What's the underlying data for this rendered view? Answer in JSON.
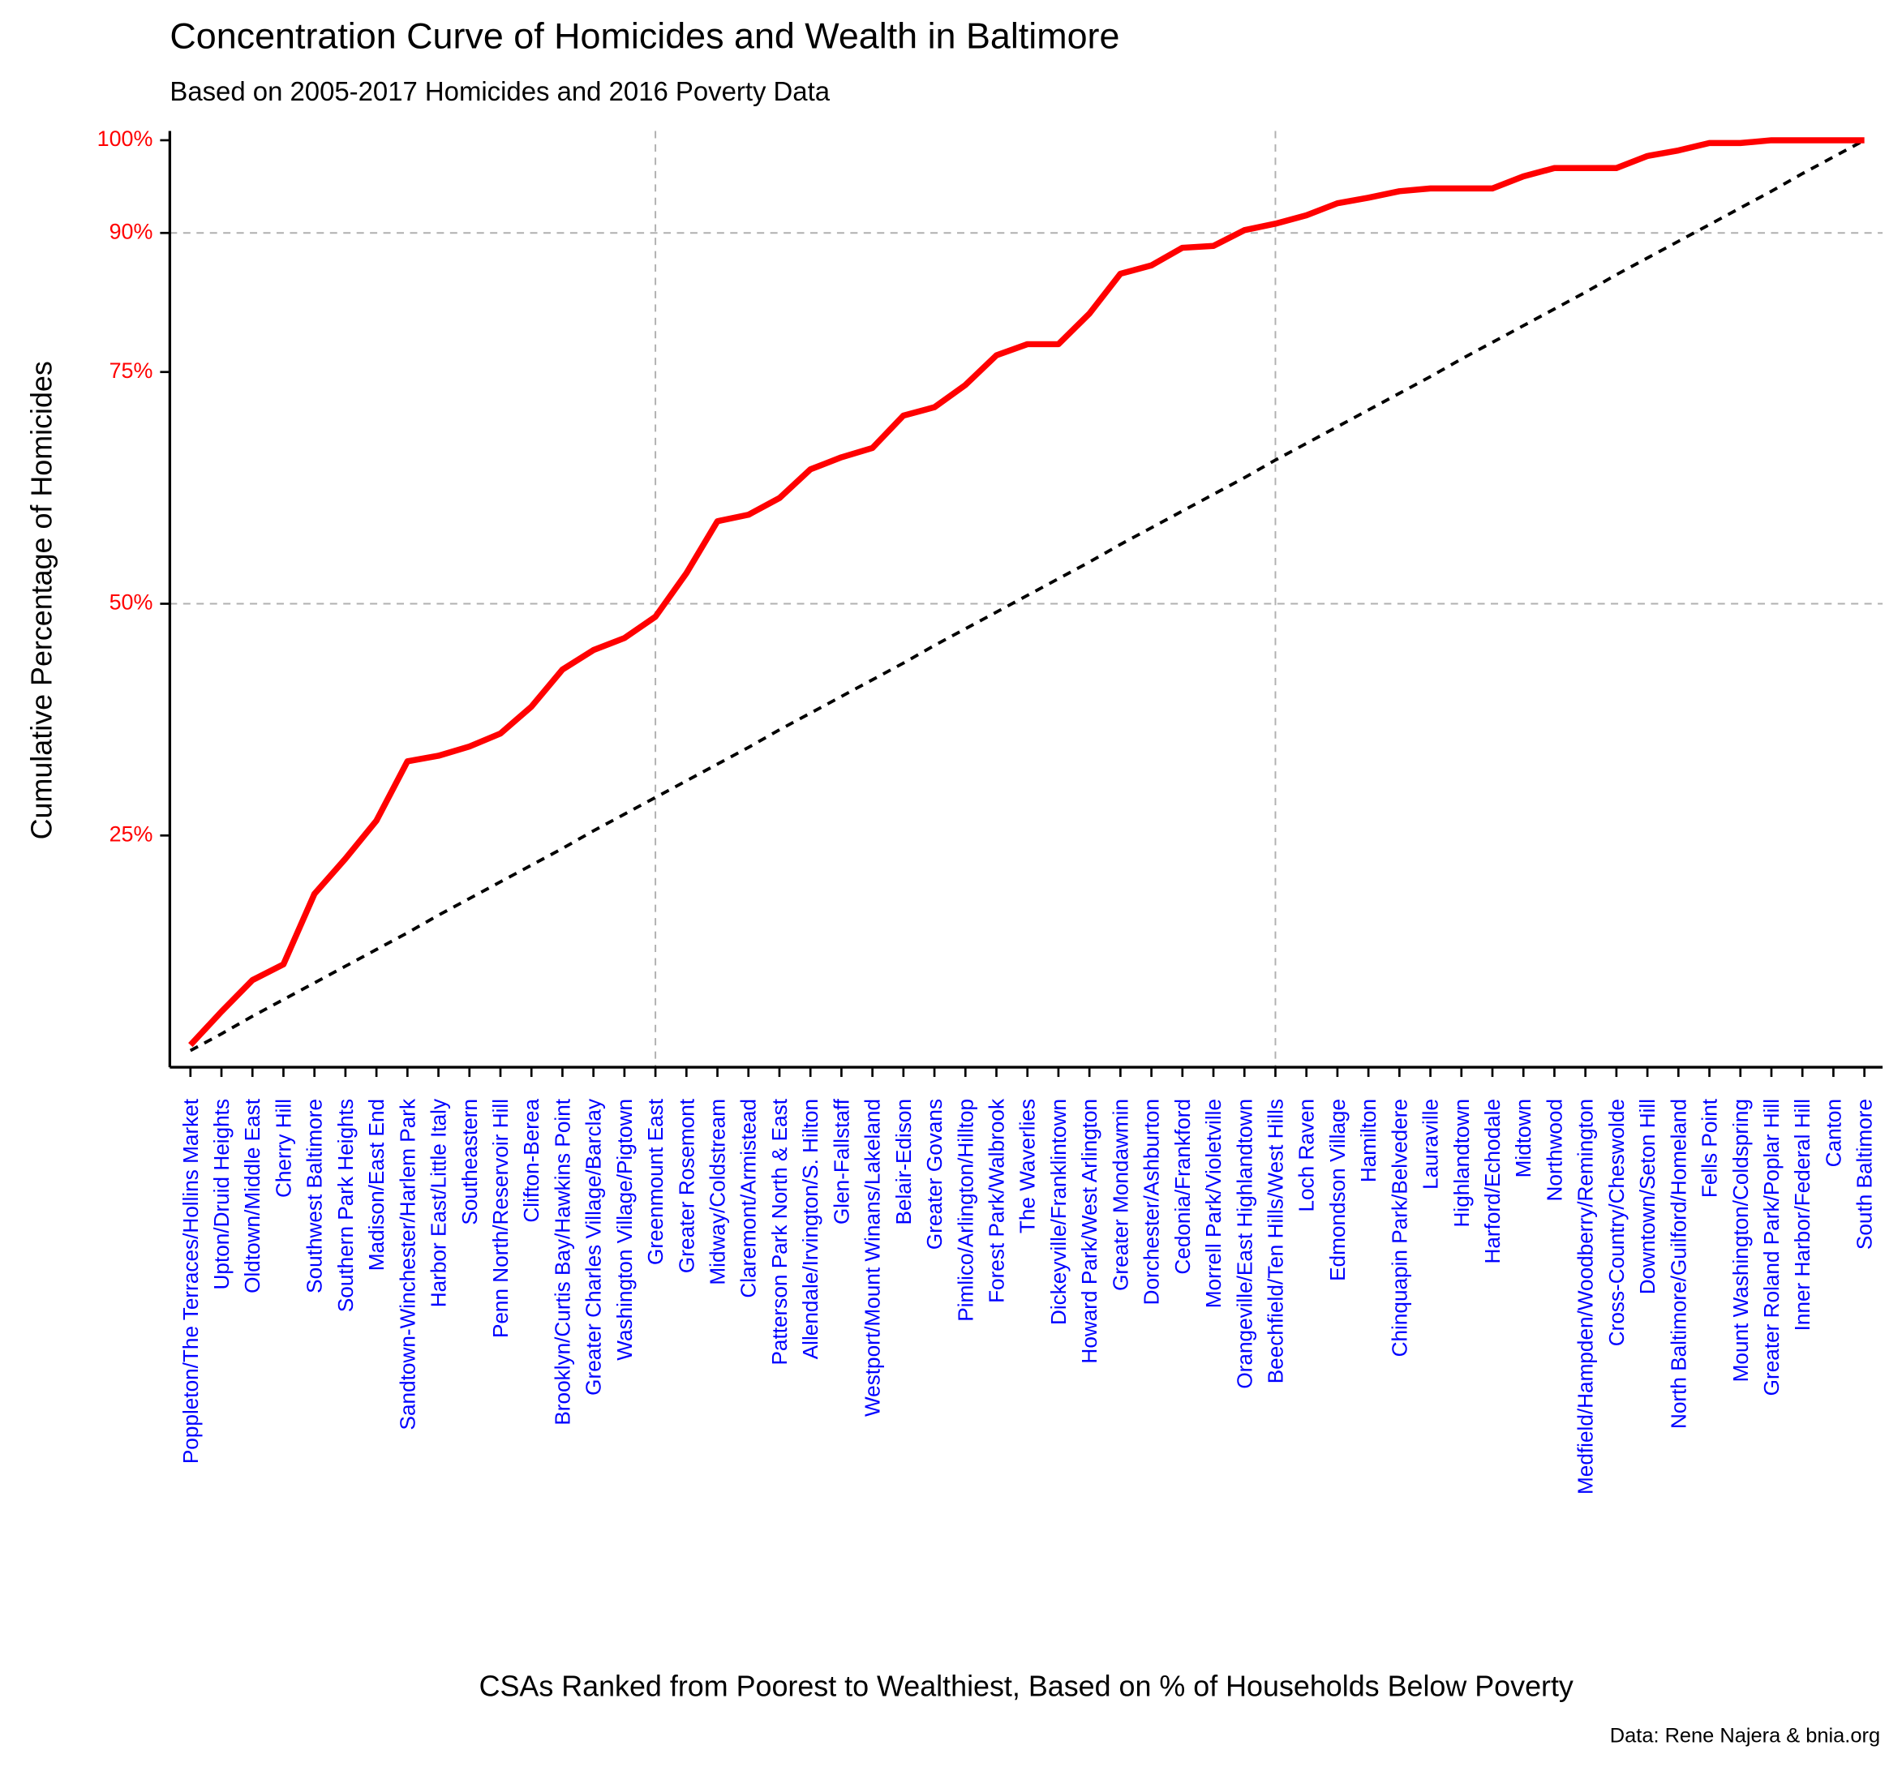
{
  "chart_data": {
    "type": "line",
    "title": "Concentration Curve of Homicides and Wealth in Baltimore",
    "subtitle": "Based on 2005-2017 Homicides and 2016 Poverty Data",
    "y_label": "Cumulative Percentage of Homicides",
    "x_label": "CSAs Ranked from Poorest to Wealthiest, Based on % of Households Below Poverty",
    "caption": "Data: Rene Najera & bnia.org",
    "categories": [
      "Poppleton/The Terraces/Hollins Market",
      "Upton/Druid Heights",
      "Oldtown/Middle East",
      "Cherry Hill",
      "Southwest Baltimore",
      "Southern Park Heights",
      "Madison/East End",
      "Sandtown-Winchester/Harlem Park",
      "Harbor East/Little Italy",
      "Southeastern",
      "Penn North/Reservoir Hill",
      "Clifton-Berea",
      "Brooklyn/Curtis Bay/Hawkins Point",
      "Greater Charles Village/Barclay",
      "Washington Village/Pigtown",
      "Greenmount East",
      "Greater Rosemont",
      "Midway/Coldstream",
      "Claremont/Armistead",
      "Patterson Park North & East",
      "Allendale/Irvington/S. Hilton",
      "Glen-Fallstaff",
      "Westport/Mount Winans/Lakeland",
      "Belair-Edison",
      "Greater Govans",
      "Pimlico/Arlington/Hilltop",
      "Forest Park/Walbrook",
      "The Waverlies",
      "Dickeyville/Franklintown",
      "Howard Park/West Arlington",
      "Greater Mondawmin",
      "Dorchester/Ashburton",
      "Cedonia/Frankford",
      "Morrell Park/Violetville",
      "Orangeville/East Highlandtown",
      "Beechfield/Ten Hills/West Hills",
      "Loch Raven",
      "Edmondson Village",
      "Hamilton",
      "Chinquapin Park/Belvedere",
      "Lauraville",
      "Highlandtown",
      "Harford/Echodale",
      "Midtown",
      "Northwood",
      "Medfield/Hampden/Woodberry/Remington",
      "Cross-Country/Cheswolde",
      "Downtown/Seton Hill",
      "North Baltimore/Guilford/Homeland",
      "Fells Point",
      "Mount Washington/Coldspring",
      "Greater Roland Park/Poplar Hill",
      "Inner Harbor/Federal Hill",
      "Canton",
      "South Baltimore"
    ],
    "series": [
      {
        "color": "#ff0000",
        "dash": false,
        "values": [
          2.4,
          6.0,
          9.4,
          11.1,
          18.7,
          22.5,
          26.6,
          33.0,
          33.6,
          34.6,
          36.0,
          38.9,
          42.9,
          45.0,
          46.3,
          48.6,
          53.3,
          58.9,
          59.6,
          61.4,
          64.5,
          65.8,
          66.8,
          70.3,
          71.2,
          73.6,
          76.8,
          78.0,
          78.0,
          81.3,
          85.6,
          86.5,
          88.4,
          88.6,
          90.3,
          91.0,
          91.9,
          93.2,
          93.8,
          94.5,
          94.8,
          94.8,
          94.8,
          96.1,
          97.0,
          97.0,
          97.0,
          98.3,
          98.9,
          99.7,
          99.7,
          100,
          100,
          100,
          100
        ]
      },
      {
        "color": "#000000",
        "dash": true,
        "values": [
          1.8,
          3.6,
          5.5,
          7.3,
          9.1,
          10.9,
          12.7,
          14.5,
          16.4,
          18.2,
          20.0,
          21.8,
          23.6,
          25.5,
          27.3,
          29.1,
          30.9,
          32.7,
          34.5,
          36.4,
          38.2,
          40.0,
          41.8,
          43.6,
          45.5,
          47.3,
          49.1,
          50.9,
          52.7,
          54.5,
          56.4,
          58.2,
          60.0,
          61.8,
          63.6,
          65.5,
          67.3,
          69.1,
          70.9,
          72.7,
          74.5,
          76.4,
          78.2,
          80.0,
          81.8,
          83.6,
          85.5,
          87.3,
          89.1,
          90.9,
          92.7,
          94.5,
          96.4,
          98.2,
          100
        ]
      }
    ],
    "ylim": [
      0,
      101
    ],
    "yticks": [
      {
        "value": 25,
        "label": "25%"
      },
      {
        "value": 50,
        "label": "50%"
      },
      {
        "value": 75,
        "label": "75%"
      },
      {
        "value": 90,
        "label": "90%"
      },
      {
        "value": 100,
        "label": "100%"
      }
    ],
    "ytick_color": "#ff0000",
    "xtick_color": "#0000ff",
    "reference_lines": {
      "y": [
        50,
        90
      ],
      "x": [
        "Greenmount East",
        "Beechfield/Ten Hills/West Hills"
      ]
    }
  }
}
